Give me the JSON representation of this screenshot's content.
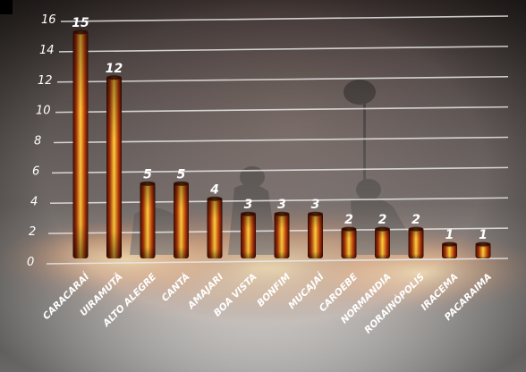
{
  "chart_data": {
    "type": "bar",
    "title": "",
    "xlabel": "",
    "ylabel": "",
    "categories": [
      "CARACARAÍ",
      "UIRAMUTÃ",
      "ALTO ALEGRE",
      "CANTÁ",
      "AMAJARI",
      "BOA VISTA",
      "BONFIM",
      "MUCAJAÍ",
      "CAROEBE",
      "NORMANDIA",
      "RORAINÓPOLIS",
      "IRACEMA",
      "PACARAIMA"
    ],
    "values": [
      15,
      12,
      5,
      5,
      4,
      3,
      3,
      3,
      2,
      2,
      2,
      1,
      1
    ],
    "value_labels": [
      "15",
      "12",
      "5",
      "5",
      "4",
      "3",
      "3",
      "3",
      "2",
      "2",
      "2",
      "1",
      "1"
    ],
    "yticks": [
      "0",
      "2",
      "4",
      "6",
      "8",
      "10",
      "12",
      "14",
      "16"
    ],
    "ylim": [
      0,
      16
    ],
    "grid": true,
    "legend": "none",
    "colors": {
      "bar_core": "#ffd23a",
      "bar_mid": "#e8560c",
      "bar_edge": "#5a0c02",
      "gridline": "#e9e9e9",
      "text": "#ffffff"
    }
  }
}
